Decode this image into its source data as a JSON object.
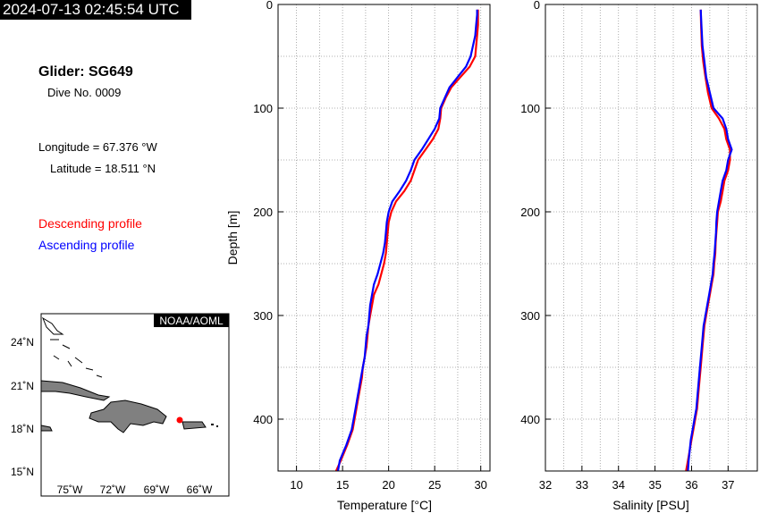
{
  "header": {
    "timestamp": "2024-07-13 02:45:54 UTC"
  },
  "info": {
    "glider": "Glider: SG649",
    "dive": "Dive No. 0009",
    "longitude": "Longitude = 67.376 °W",
    "latitude": "Latitude = 18.511 °N"
  },
  "legend": {
    "descending": "Descending profile",
    "ascending": "Ascending profile"
  },
  "colors": {
    "descending": "#ff0000",
    "ascending": "#0000ff",
    "land": "#808080",
    "position_marker": "#ff0000"
  },
  "map": {
    "credit": "NOAA/AOML",
    "lon_ticks": [
      "75˚W",
      "72˚W",
      "69˚W",
      "66˚W"
    ],
    "lat_ticks": [
      "24˚N",
      "21˚N",
      "18˚N",
      "15˚N"
    ],
    "glider_position": {
      "lon": -67.376,
      "lat": 18.511
    }
  },
  "chart_data": [
    {
      "type": "line",
      "xlabel": "Temperature [°C]",
      "ylabel": "Depth [m]",
      "xlim": [
        8,
        31
      ],
      "ylim": [
        450,
        0
      ],
      "x_ticks": [
        "10",
        "15",
        "20",
        "25",
        "30"
      ],
      "y_ticks": [
        "0",
        "100",
        "200",
        "300",
        "400"
      ],
      "grid": true,
      "series": [
        {
          "name": "Descending profile",
          "color": "#ff0000",
          "x": [
            29.7,
            29.7,
            29.7,
            29.6,
            29.4,
            28.8,
            27.8,
            26.8,
            26.2,
            25.7,
            25.6,
            25.4,
            24.8,
            24.0,
            23.2,
            22.8,
            22.4,
            21.7,
            20.8,
            20.3,
            20.0,
            19.9,
            19.8,
            19.7,
            19.5,
            19.2,
            18.9,
            18.4,
            18.2,
            18.0,
            17.8,
            17.7,
            17.6,
            17.4,
            17.2,
            17.1,
            16.9,
            16.7,
            16.5,
            16.1,
            15.5,
            14.8,
            14.3
          ],
          "y": [
            5,
            10,
            20,
            30,
            50,
            60,
            70,
            80,
            90,
            100,
            110,
            120,
            130,
            140,
            150,
            160,
            170,
            180,
            190,
            200,
            210,
            220,
            230,
            240,
            250,
            260,
            270,
            280,
            290,
            300,
            310,
            320,
            330,
            340,
            350,
            360,
            370,
            380,
            390,
            410,
            425,
            440,
            450
          ]
        },
        {
          "name": "Ascending profile",
          "color": "#0000ff",
          "x": [
            29.6,
            29.6,
            29.5,
            29.4,
            28.9,
            28.4,
            27.5,
            26.6,
            26.1,
            25.6,
            25.5,
            25.0,
            24.3,
            23.6,
            22.8,
            22.4,
            21.9,
            21.2,
            20.4,
            20.0,
            19.8,
            19.7,
            19.6,
            19.4,
            19.1,
            18.8,
            18.4,
            18.2,
            18.0,
            17.9,
            17.8,
            17.6,
            17.5,
            17.4,
            17.2,
            17.0,
            16.8,
            16.6,
            16.4,
            16.0,
            15.4,
            14.7,
            14.5
          ],
          "y": [
            5,
            10,
            20,
            30,
            50,
            60,
            70,
            80,
            90,
            100,
            110,
            120,
            130,
            140,
            150,
            160,
            170,
            180,
            190,
            200,
            210,
            220,
            230,
            240,
            250,
            260,
            270,
            280,
            290,
            300,
            310,
            320,
            330,
            340,
            350,
            360,
            370,
            380,
            390,
            410,
            425,
            440,
            450
          ]
        }
      ]
    },
    {
      "type": "line",
      "xlabel": "Salinity [PSU]",
      "ylabel": "",
      "xlim": [
        32,
        37.8
      ],
      "ylim": [
        450,
        0
      ],
      "x_ticks": [
        "32",
        "33",
        "34",
        "35",
        "36",
        "37"
      ],
      "y_ticks": [
        "0",
        "100",
        "200",
        "300",
        "400"
      ],
      "grid": true,
      "series": [
        {
          "name": "Descending profile",
          "color": "#ff0000",
          "x": [
            36.25,
            36.26,
            36.28,
            36.32,
            36.38,
            36.45,
            36.55,
            36.75,
            36.9,
            36.95,
            37.05,
            37.05,
            37.0,
            36.9,
            36.85,
            36.8,
            36.72,
            36.7,
            36.68,
            36.66,
            36.65,
            36.62,
            36.6,
            36.55,
            36.5,
            36.45,
            36.4,
            36.35,
            36.3,
            36.25,
            36.2,
            36.15,
            36.1,
            36.05,
            36.0,
            35.95,
            35.9,
            35.85
          ],
          "y": [
            5,
            20,
            40,
            55,
            70,
            85,
            100,
            110,
            120,
            130,
            140,
            150,
            160,
            170,
            180,
            190,
            200,
            210,
            220,
            230,
            240,
            250,
            260,
            270,
            280,
            290,
            300,
            310,
            330,
            350,
            370,
            390,
            400,
            410,
            420,
            430,
            440,
            450
          ]
        },
        {
          "name": "Ascending profile",
          "color": "#0000ff",
          "x": [
            36.25,
            36.27,
            36.3,
            36.35,
            36.4,
            36.5,
            36.6,
            36.85,
            36.95,
            37.0,
            37.1,
            37.0,
            36.95,
            36.85,
            36.8,
            36.75,
            36.7,
            36.68,
            36.67,
            36.65,
            36.63,
            36.6,
            36.58,
            36.53,
            36.48,
            36.43,
            36.38,
            36.33,
            36.28,
            36.23,
            36.18,
            36.13,
            36.08,
            36.03,
            35.98,
            35.95,
            35.92,
            35.9
          ],
          "y": [
            5,
            20,
            40,
            55,
            70,
            85,
            100,
            110,
            120,
            130,
            140,
            150,
            160,
            170,
            180,
            190,
            200,
            210,
            220,
            230,
            240,
            250,
            260,
            270,
            280,
            290,
            300,
            310,
            330,
            350,
            370,
            390,
            400,
            410,
            420,
            430,
            440,
            450
          ]
        }
      ]
    }
  ]
}
